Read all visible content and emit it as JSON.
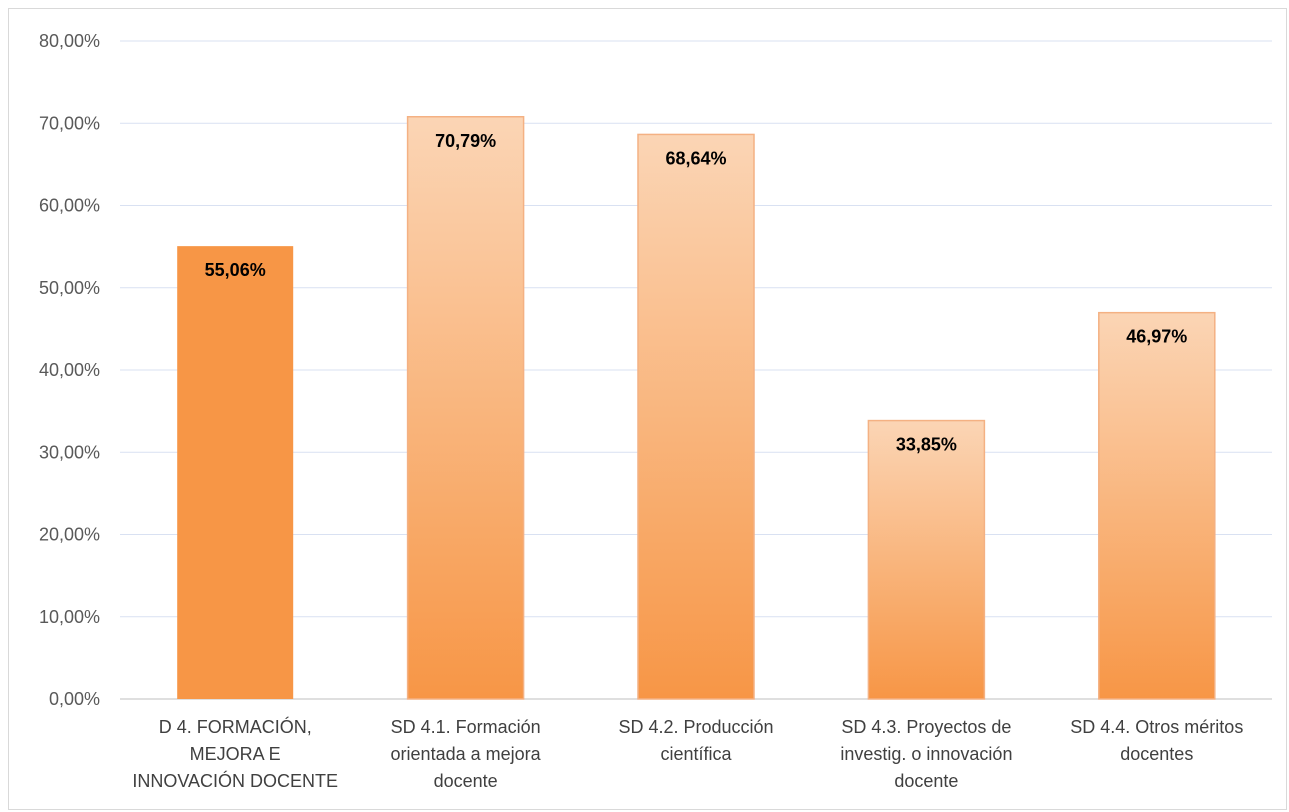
{
  "chart_data": {
    "type": "bar",
    "categories": [
      [
        "D 4. FORMACIÓN,",
        "MEJORA E",
        "INNOVACIÓN DOCENTE"
      ],
      [
        "SD 4.1. Formación",
        "orientada a mejora",
        "docente"
      ],
      [
        "SD 4.2. Producción",
        "científica"
      ],
      [
        "SD 4.3. Proyectos de",
        "investig. o innovación",
        "docente"
      ],
      [
        "SD 4.4. Otros méritos",
        "docentes"
      ]
    ],
    "values": [
      55.06,
      70.79,
      68.64,
      33.85,
      46.97
    ],
    "data_labels": [
      "55,06%",
      "70,79%",
      "68,64%",
      "33,85%",
      "46,97%"
    ],
    "bar_styles": [
      "solid",
      "gradient",
      "gradient",
      "gradient",
      "gradient"
    ],
    "ylim": [
      0,
      80
    ],
    "yticks": [
      {
        "value": 0,
        "label": "0,00%"
      },
      {
        "value": 10,
        "label": "10,00%"
      },
      {
        "value": 20,
        "label": "20,00%"
      },
      {
        "value": 30,
        "label": "30,00%"
      },
      {
        "value": 40,
        "label": "40,00%"
      },
      {
        "value": 50,
        "label": "50,00%"
      },
      {
        "value": 60,
        "label": "60,00%"
      },
      {
        "value": 70,
        "label": "70,00%"
      },
      {
        "value": 80,
        "label": "80,00%"
      }
    ],
    "grid": true,
    "title": "",
    "xlabel": "",
    "ylabel": "",
    "colors": {
      "solid": "#f79646",
      "gradient_top": "#fbd5b5",
      "gradient_bottom": "#f79646",
      "gradient_border": "#f4b183",
      "grid": "#d9e1f2",
      "axis": "#bfbfbf"
    }
  }
}
